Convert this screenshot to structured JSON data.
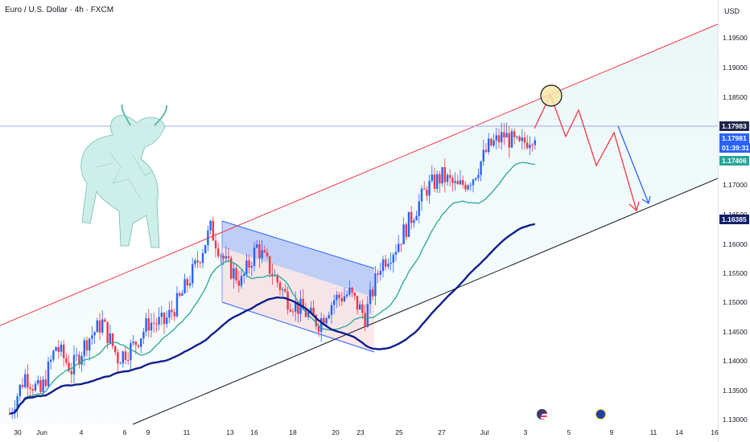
{
  "header": {
    "title": "Euro / U.S. Dollar · 4h · FXCM",
    "currency": "USD"
  },
  "price_axis": {
    "ticks": [
      "1.19500",
      "1.19000",
      "1.18500",
      "1.17000",
      "1.16500",
      "1.16000",
      "1.15500",
      "1.15000",
      "1.14500",
      "1.14000",
      "1.13500",
      "1.13000"
    ],
    "labels": {
      "last_price": "1.17983",
      "current_price": "1.17981",
      "countdown": "01:39:31",
      "ma_green": "1.17406",
      "ma_navy": "1.16385"
    }
  },
  "time_axis": {
    "ticks": [
      "30",
      "Jun",
      "4",
      "6",
      "9",
      "11",
      "13",
      "16",
      "18",
      "20",
      "23",
      "25",
      "27",
      "Jul",
      "3",
      "5",
      "9",
      "11",
      "14",
      "16"
    ]
  },
  "colors": {
    "bull": "#2962ff",
    "bear": "#f23645",
    "ma_fast": "#26a69a",
    "ma_slow": "#0d1f8c",
    "channel_top": "#f23645",
    "channel_bottom": "#131722",
    "flag_fill": "#5b7cf0",
    "hline": "#9fa8f0"
  },
  "icons": [
    "bull-illustration-icon",
    "us-flag-icon",
    "eu-flag-icon"
  ],
  "chart_data": {
    "type": "candlestick",
    "title": "Euro / U.S. Dollar · 4h · FXCM",
    "ylim": [
      1.128,
      1.198
    ],
    "grid": false,
    "price_series_control_points": [
      [
        0,
        1.1315
      ],
      [
        6,
        1.138
      ],
      [
        12,
        1.135
      ],
      [
        18,
        1.143
      ],
      [
        24,
        1.139
      ],
      [
        30,
        1.144
      ],
      [
        36,
        1.147
      ],
      [
        42,
        1.141
      ],
      [
        48,
        1.143
      ],
      [
        54,
        1.147
      ],
      [
        60,
        1.147
      ],
      [
        66,
        1.151
      ],
      [
        72,
        1.1565
      ],
      [
        78,
        1.163
      ],
      [
        84,
        1.157
      ],
      [
        90,
        1.154
      ],
      [
        96,
        1.16
      ],
      [
        102,
        1.1555
      ],
      [
        108,
        1.151
      ],
      [
        114,
        1.149
      ],
      [
        120,
        1.147
      ],
      [
        126,
        1.151
      ],
      [
        132,
        1.152
      ],
      [
        138,
        1.148
      ],
      [
        144,
        1.157
      ],
      [
        150,
        1.16
      ],
      [
        156,
        1.165
      ],
      [
        162,
        1.17
      ],
      [
        168,
        1.172
      ],
      [
        174,
        1.17
      ],
      [
        180,
        1.172
      ],
      [
        186,
        1.177
      ],
      [
        192,
        1.179
      ],
      [
        198,
        1.177
      ],
      [
        204,
        1.1795
      ]
    ],
    "ma_fast_end": 1.17406,
    "ma_slow_end": 1.16385,
    "horizontal_level": 1.17983,
    "annotations": [
      "ascending channel (upper red line, lower black line)",
      "descending bull flag (blue box)",
      "projected path: up to channel top then down to channel support (red and blue arrows)",
      "circle marker at channel top touch"
    ]
  }
}
